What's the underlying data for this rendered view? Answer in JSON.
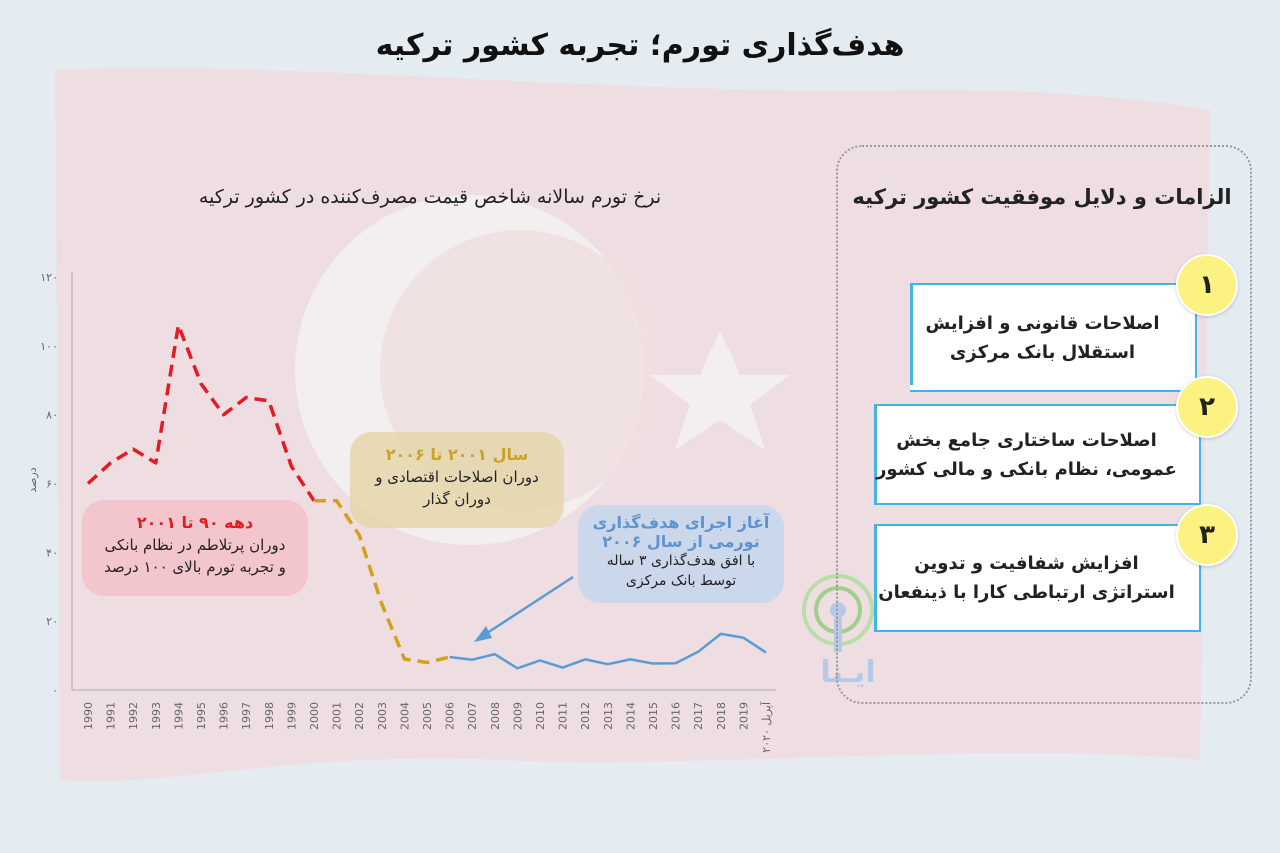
{
  "title": "هدف‌گذاری تورم؛ تجربه کشور ترکیه",
  "chart_data": {
    "type": "line",
    "title": "نرخ تورم سالانه شاخص قیمت مصرف‌کننده در کشور ترکیه",
    "ylabel": "درصد",
    "ylim": [
      0,
      120
    ],
    "yticks": [
      "۰",
      "۲۰",
      "۴۰",
      "۶۰",
      "۸۰",
      "۱۰۰",
      "۱۲۰"
    ],
    "categories": [
      "1990",
      "1991",
      "1992",
      "1993",
      "1994",
      "1995",
      "1996",
      "1997",
      "1998",
      "1999",
      "2000",
      "2001",
      "2002",
      "2003",
      "2004",
      "2005",
      "2006",
      "2007",
      "2008",
      "2009",
      "2010",
      "2011",
      "2012",
      "2013",
      "2014",
      "2015",
      "2016",
      "2017",
      "2018",
      "2019",
      "آپریل ۲۰۲۰"
    ],
    "values": [
      60,
      66,
      70,
      66,
      106,
      89,
      80,
      85,
      84,
      65,
      55,
      55,
      45,
      25,
      9,
      8,
      9.6,
      8.8,
      10.4,
      6.3,
      8.6,
      6.5,
      8.9,
      7.5,
      8.9,
      7.7,
      7.8,
      11.1,
      16.3,
      15.2,
      10.9
    ],
    "series_segments": [
      {
        "name": "دهه ۹۰ تا ۲۰۰۱",
        "color": "#e31b23",
        "style": "dashed",
        "from": 0,
        "to": 10
      },
      {
        "name": "سال ۲۰۰۱ تا ۲۰۰۶",
        "color": "#d4a017",
        "style": "dashed",
        "from": 10,
        "to": 16
      },
      {
        "name": "آغاز اجرای هدف‌گذاری تورمی از سال ۲۰۰۶",
        "color": "#5b9bd5",
        "style": "solid",
        "from": 16,
        "to": 30
      }
    ]
  },
  "notes": {
    "red": {
      "head": "دهه ۹۰ تا ۲۰۰۱",
      "line1": "دوران پرتلاطم در نظام بانکی",
      "line2": "و تجربه تورم بالای ۱۰۰ درصد"
    },
    "gold": {
      "head": "سال ۲۰۰۱ تا ۲۰۰۶",
      "line1": "دوران اصلاحات اقتصادی و",
      "line2": "دوران گذار"
    },
    "blue": {
      "head1": "آغاز اجرای هدف‌گذاری",
      "head2": "تورمی از سال ۲۰۰۶",
      "line1": "با افق هدف‌گذاری ۳ ساله",
      "line2": "توسط بانک مرکزی"
    }
  },
  "panel": {
    "title": "الزامات و دلایل موفقیت کشور ترکیه",
    "items": [
      {
        "number": "۱",
        "line1": "اصلاحات قانونی و افزایش",
        "line2": "استقلال بانک مرکزی"
      },
      {
        "number": "۲",
        "line1": "اصلاحات ساختاری جامع بخش",
        "line2": "عمومی، نظام بانکی و مالی کشور"
      },
      {
        "number": "۳",
        "line1": "افزایش شفافیت و تدوین",
        "line2": "استراتژی ارتباطی کارا با ذینفعان"
      }
    ]
  },
  "watermark": "ایـنا",
  "colors": {
    "red": "#e31b23",
    "gold": "#d4a017",
    "blue": "#5b9bd5",
    "accent": "#44b4e6",
    "badge": "#fcf281"
  }
}
